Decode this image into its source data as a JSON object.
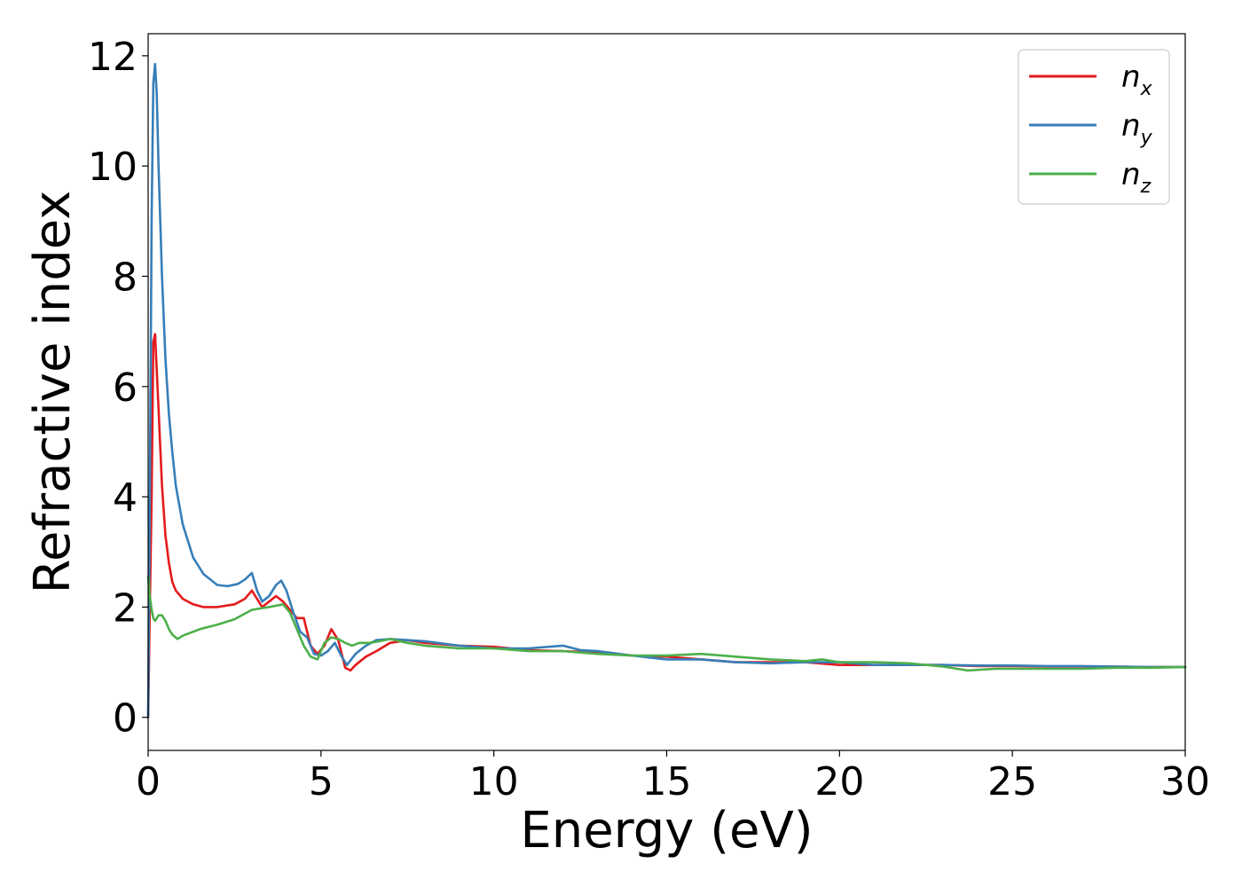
{
  "chart_data": {
    "type": "line",
    "title": "",
    "xlabel": "Energy (eV)",
    "ylabel": "Refractive index",
    "xlim": [
      0,
      30
    ],
    "ylim": [
      -0.6,
      12.4
    ],
    "xticks": [
      0,
      5,
      10,
      15,
      20,
      25,
      30
    ],
    "yticks": [
      0,
      2,
      4,
      6,
      8,
      10,
      12
    ],
    "grid": false,
    "legend_position": "top-right",
    "series": [
      {
        "name": "n",
        "subscript": "x",
        "color": "#e41a1c",
        "x": [
          0,
          0.05,
          0.1,
          0.15,
          0.2,
          0.3,
          0.4,
          0.5,
          0.6,
          0.7,
          0.8,
          1.0,
          1.3,
          1.6,
          2.0,
          2.5,
          2.8,
          3.0,
          3.15,
          3.3,
          3.5,
          3.7,
          3.9,
          4.1,
          4.3,
          4.5,
          4.7,
          4.9,
          5.1,
          5.3,
          5.5,
          5.7,
          5.85,
          6.0,
          6.3,
          6.6,
          7.0,
          7.5,
          8.0,
          9.0,
          10.0,
          11.0,
          12.0,
          13.0,
          14.0,
          15.0,
          16.0,
          17.0,
          18.0,
          19.0,
          20.0,
          21.0,
          22.0,
          23.0,
          24.0,
          25.0,
          26.0,
          27.0,
          28.0,
          29.0,
          30.0
        ],
        "y": [
          0,
          2.0,
          4.0,
          6.8,
          6.95,
          5.6,
          4.2,
          3.3,
          2.8,
          2.45,
          2.3,
          2.15,
          2.05,
          2.0,
          2.0,
          2.05,
          2.15,
          2.3,
          2.15,
          2.0,
          2.1,
          2.2,
          2.1,
          1.95,
          1.8,
          1.8,
          1.3,
          1.15,
          1.3,
          1.6,
          1.4,
          0.9,
          0.85,
          0.95,
          1.1,
          1.2,
          1.35,
          1.4,
          1.35,
          1.3,
          1.28,
          1.22,
          1.2,
          1.18,
          1.12,
          1.1,
          1.05,
          1.0,
          1.0,
          1.0,
          0.95,
          0.95,
          0.95,
          0.95,
          0.93,
          0.93,
          0.92,
          0.92,
          0.92,
          0.91,
          0.91
        ]
      },
      {
        "name": "n",
        "subscript": "y",
        "color": "#377eb8",
        "x": [
          0,
          0.05,
          0.1,
          0.15,
          0.2,
          0.25,
          0.3,
          0.4,
          0.5,
          0.6,
          0.7,
          0.8,
          1.0,
          1.3,
          1.6,
          2.0,
          2.3,
          2.6,
          2.8,
          3.0,
          3.15,
          3.3,
          3.5,
          3.7,
          3.85,
          4.0,
          4.2,
          4.4,
          4.6,
          4.8,
          5.0,
          5.2,
          5.4,
          5.6,
          5.75,
          6.0,
          6.3,
          6.6,
          7.0,
          7.5,
          8.0,
          9.0,
          10.0,
          11.0,
          12.0,
          12.5,
          13.0,
          14.0,
          15.0,
          16.0,
          17.0,
          18.0,
          19.0,
          20.0,
          21.0,
          22.0,
          23.0,
          24.0,
          25.0,
          26.0,
          27.0,
          28.0,
          29.0,
          30.0
        ],
        "y": [
          0,
          4.0,
          9.0,
          11.5,
          11.85,
          11.3,
          10.0,
          8.0,
          6.5,
          5.5,
          4.8,
          4.2,
          3.5,
          2.9,
          2.6,
          2.4,
          2.38,
          2.42,
          2.5,
          2.62,
          2.3,
          2.1,
          2.2,
          2.4,
          2.48,
          2.3,
          1.9,
          1.55,
          1.45,
          1.15,
          1.12,
          1.2,
          1.35,
          1.1,
          0.95,
          1.15,
          1.3,
          1.4,
          1.42,
          1.4,
          1.38,
          1.3,
          1.25,
          1.25,
          1.3,
          1.22,
          1.2,
          1.12,
          1.05,
          1.05,
          1.0,
          0.98,
          1.0,
          1.0,
          0.95,
          0.95,
          0.95,
          0.94,
          0.94,
          0.93,
          0.93,
          0.92,
          0.91,
          0.91
        ]
      },
      {
        "name": "n",
        "subscript": "z",
        "color": "#4daf4a",
        "x": [
          0,
          0.05,
          0.1,
          0.15,
          0.2,
          0.3,
          0.4,
          0.5,
          0.6,
          0.7,
          0.85,
          1.0,
          1.5,
          2.0,
          2.5,
          3.0,
          3.5,
          3.9,
          4.1,
          4.3,
          4.5,
          4.7,
          4.9,
          5.1,
          5.3,
          5.5,
          5.7,
          5.9,
          6.1,
          6.4,
          6.7,
          7.0,
          7.5,
          8.0,
          9.0,
          10.0,
          11.0,
          12.0,
          13.0,
          14.0,
          15.0,
          16.0,
          17.0,
          18.0,
          19.0,
          19.5,
          20.0,
          21.0,
          22.0,
          23.0,
          23.7,
          24.5,
          25.0,
          26.0,
          27.0,
          28.0,
          29.0,
          30.0
        ],
        "y": [
          2.55,
          2.2,
          1.95,
          1.8,
          1.75,
          1.85,
          1.85,
          1.75,
          1.6,
          1.5,
          1.42,
          1.48,
          1.6,
          1.68,
          1.78,
          1.95,
          2.0,
          2.05,
          1.9,
          1.6,
          1.3,
          1.1,
          1.05,
          1.35,
          1.45,
          1.42,
          1.35,
          1.3,
          1.35,
          1.35,
          1.38,
          1.42,
          1.35,
          1.3,
          1.25,
          1.25,
          1.2,
          1.2,
          1.15,
          1.12,
          1.12,
          1.15,
          1.1,
          1.05,
          1.02,
          1.05,
          1.0,
          1.0,
          0.98,
          0.92,
          0.85,
          0.88,
          0.88,
          0.88,
          0.88,
          0.9,
          0.9,
          0.91
        ]
      }
    ]
  }
}
